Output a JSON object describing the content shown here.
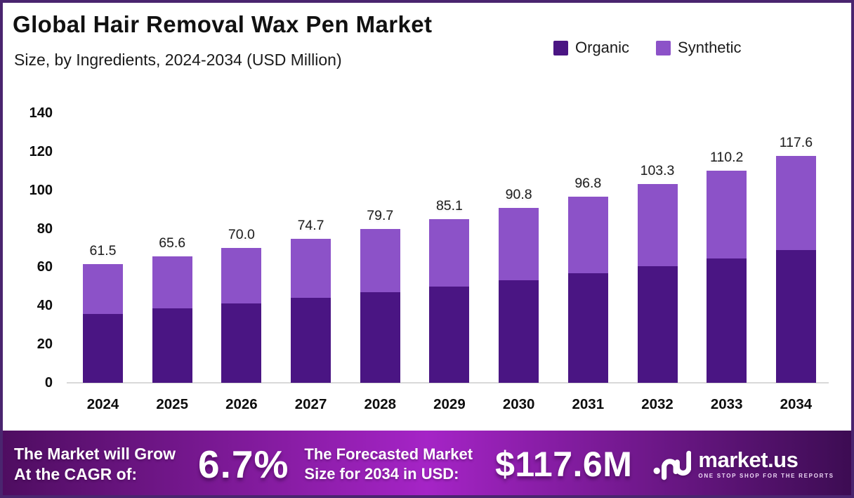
{
  "frame": {
    "border_color": "#4A256F",
    "background": "#ffffff"
  },
  "header": {
    "title": "Global Hair Removal Wax Pen Market",
    "subtitle": "Size, by Ingredients, 2024-2034 (USD Million)"
  },
  "legend": {
    "items": [
      {
        "label": "Organic",
        "color": "#4A1583"
      },
      {
        "label": "Synthetic",
        "color": "#8C52C8"
      }
    ]
  },
  "chart_data": {
    "type": "bar",
    "stacked": true,
    "title": "Global Hair Removal Wax Pen Market Size, by Ingredients, 2024-2034 (USD Million)",
    "categories": [
      "2024",
      "2025",
      "2026",
      "2027",
      "2028",
      "2029",
      "2030",
      "2031",
      "2032",
      "2033",
      "2034"
    ],
    "series": [
      {
        "name": "Organic",
        "color": "#4A1583",
        "values": [
          35.7,
          38.6,
          41.3,
          44.0,
          46.9,
          49.9,
          53.2,
          56.7,
          60.5,
          64.6,
          68.9
        ]
      },
      {
        "name": "Synthetic",
        "color": "#8C52C8",
        "values": [
          25.8,
          27.0,
          28.7,
          30.7,
          32.8,
          35.2,
          37.6,
          40.1,
          42.8,
          45.6,
          48.7
        ]
      }
    ],
    "totals": [
      61.5,
      65.6,
      70.0,
      74.7,
      79.7,
      85.1,
      90.8,
      96.8,
      103.3,
      110.2,
      117.6
    ],
    "total_labels": [
      "61.5",
      "65.6",
      "70.0",
      "74.7",
      "79.7",
      "85.1",
      "90.8",
      "96.8",
      "103.3",
      "110.2",
      "117.6"
    ],
    "xlabel": "",
    "ylabel": "",
    "ylim": [
      0,
      140
    ],
    "yticks": [
      0,
      20,
      40,
      60,
      80,
      100,
      120,
      140
    ],
    "grid": false,
    "legend_position": "top-right"
  },
  "banner": {
    "cagr_line1": "The Market will Grow",
    "cagr_line2": "At the CAGR of:",
    "cagr_value": "6.7%",
    "forecast_line1": "The Forecasted Market",
    "forecast_line2": "Size for 2034 in USD:",
    "forecast_value": "$117.6M",
    "logo_text": "market.us",
    "logo_tagline": "ONE STOP SHOP FOR THE REPORTS",
    "gradient": [
      "#4E0D60",
      "#A524C6",
      "#3C0C52"
    ]
  }
}
